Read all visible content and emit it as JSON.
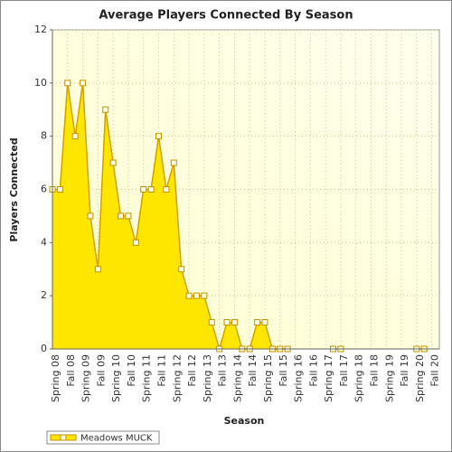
{
  "chart_data": {
    "type": "area",
    "title": "Average Players Connected By Season",
    "x_label": "Season",
    "y_label": "Players Connected",
    "categories": [
      "Spring 08",
      null,
      "Fall 08",
      null,
      "Spring 09",
      null,
      "Fall 09",
      null,
      "Spring 10",
      null,
      "Fall 10",
      null,
      "Spring 11",
      null,
      "Fall 11",
      null,
      "Spring 12",
      null,
      "Fall 12",
      null,
      "Spring 13",
      null,
      "Fall 13",
      null,
      "Spring 14",
      null,
      "Fall 14",
      null,
      "Spring 15",
      null,
      "Fall 15",
      null,
      "Spring 16",
      null,
      "Fall 16",
      null,
      "Spring 17",
      null,
      "Fall 17",
      null,
      "Spring 18",
      null,
      "Fall 18",
      null,
      "Spring 19",
      null,
      "Fall 19",
      null,
      "Spring 20",
      null,
      "Fall 20",
      null
    ],
    "series": [
      {
        "name": "Meadows MUCK",
        "color": "#ffe600",
        "values": [
          6,
          6,
          10,
          8,
          10,
          5,
          3,
          9,
          7,
          5,
          5,
          4,
          6,
          6,
          8,
          6,
          7,
          3,
          2,
          2,
          2,
          1,
          0,
          1,
          1,
          0,
          0,
          1,
          1,
          0,
          0,
          0,
          null,
          null,
          null,
          null,
          null,
          0,
          0,
          null,
          null,
          null,
          null,
          null,
          null,
          null,
          null,
          null,
          0,
          0,
          null,
          null
        ]
      }
    ],
    "ylim": [
      0,
      12
    ],
    "yticks": [
      0,
      2,
      4,
      6,
      8,
      10,
      12
    ],
    "grid": true,
    "legend": "bottom-left"
  }
}
